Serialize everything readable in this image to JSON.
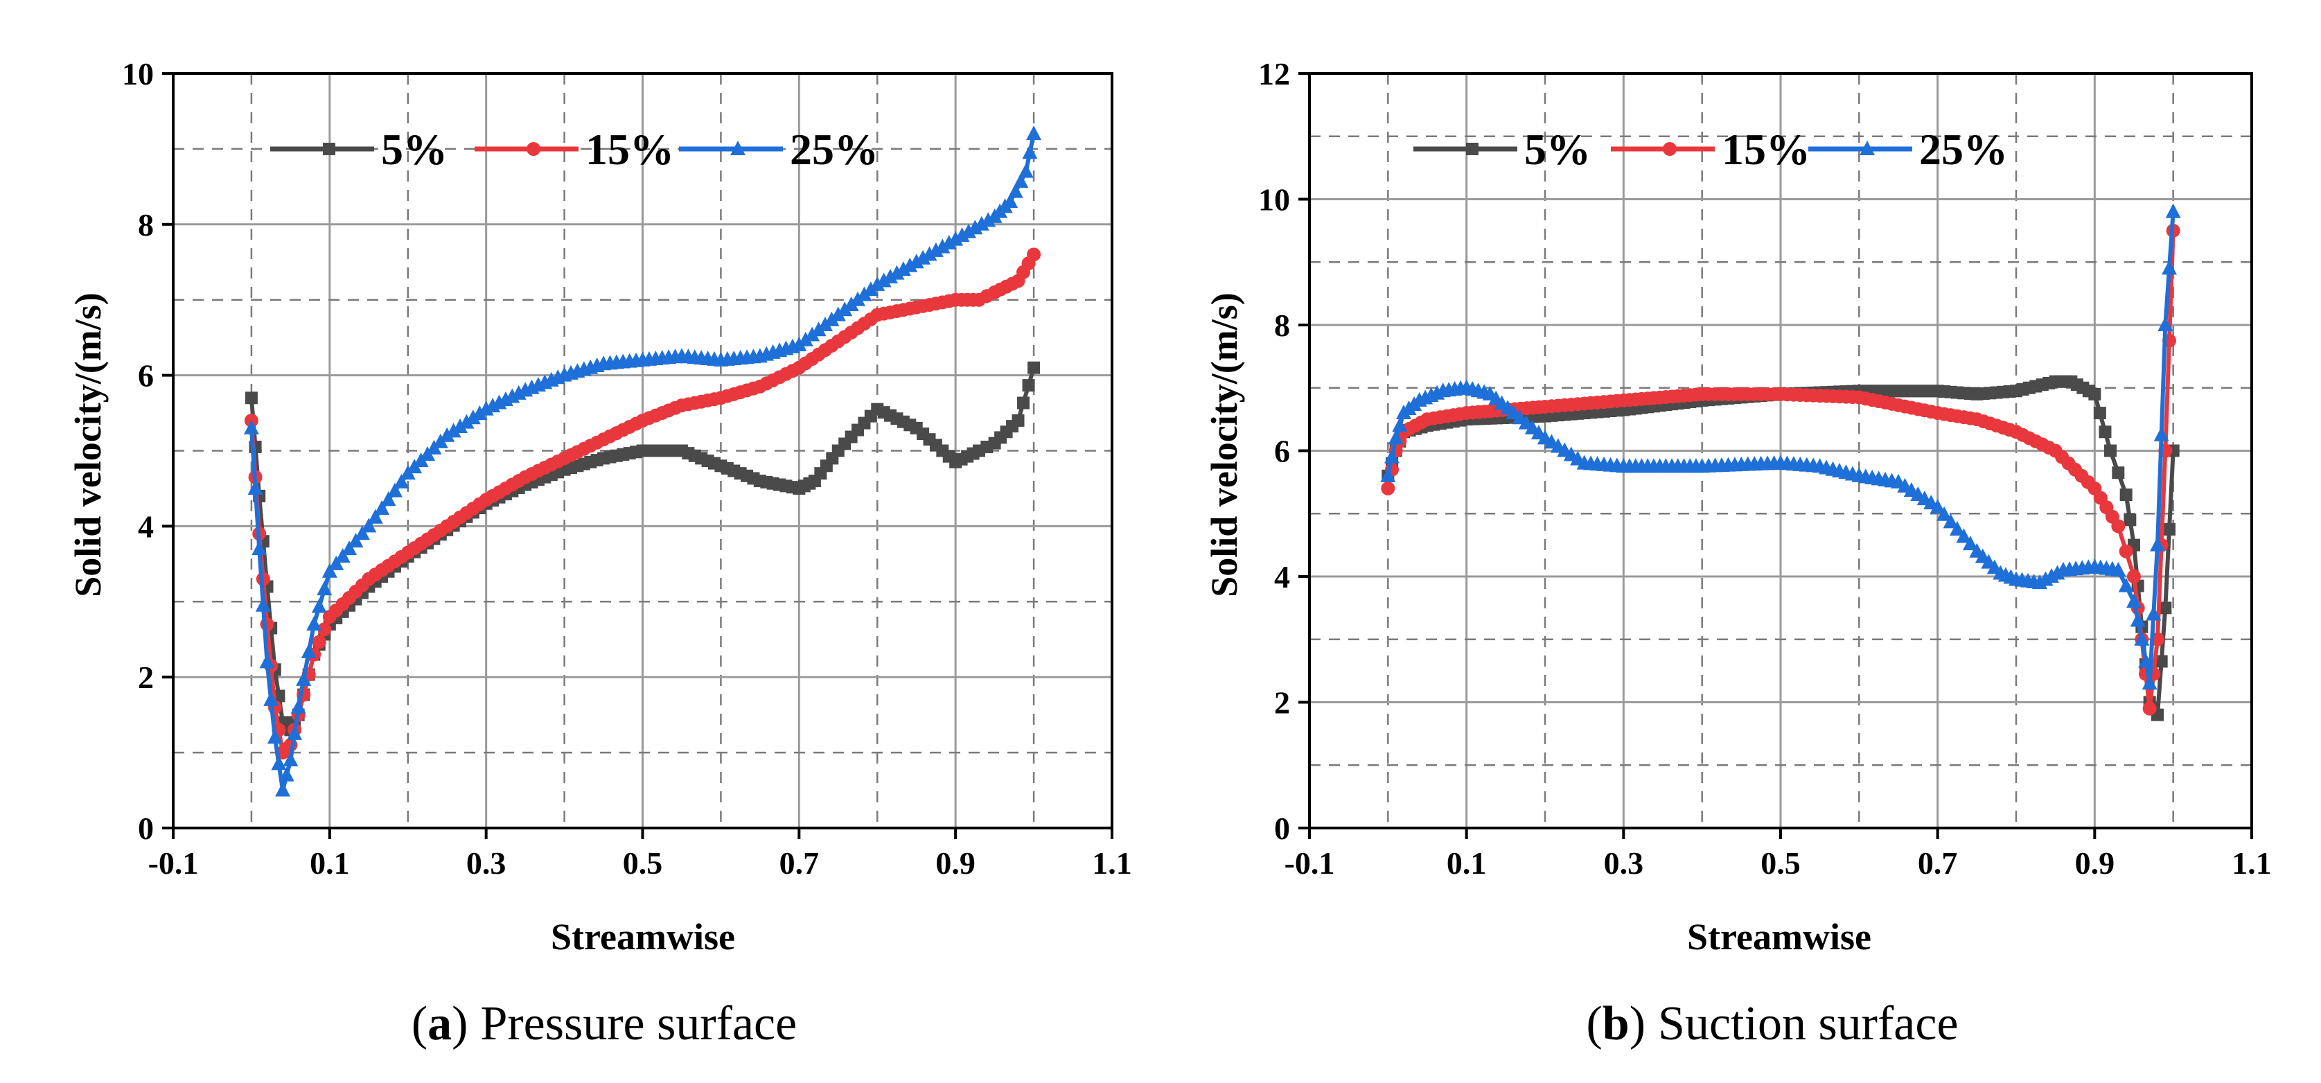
{
  "colors": {
    "s5": "#4a4a4a",
    "s15": "#e8383d",
    "s25": "#1f6fd8"
  },
  "chart_data": [
    {
      "type": "line",
      "caption_label": "a",
      "caption_text": "Pressure surface",
      "caption_open": "(",
      "caption_close": ")",
      "xlabel": "Streamwise",
      "ylabel": "Solid velocity/(m/s)",
      "xlim": [
        -0.1,
        1.1
      ],
      "ylim": [
        0,
        10
      ],
      "xticks": [
        -0.1,
        0.1,
        0.3,
        0.5,
        0.7,
        0.9,
        1.1
      ],
      "xtick_labels": [
        "-0.1",
        "0.1",
        "0.3",
        "0.5",
        "0.7",
        "0.9",
        "1.1"
      ],
      "yticks": [
        0,
        2,
        4,
        6,
        8,
        10
      ],
      "ytick_labels": [
        "0",
        "2",
        "4",
        "6",
        "8",
        "10"
      ],
      "series": [
        {
          "name": "5%",
          "marker": "square",
          "color": "#4a4a4a",
          "x": [
            0.0,
            0.01,
            0.02,
            0.03,
            0.04,
            0.05,
            0.06,
            0.08,
            0.1,
            0.15,
            0.2,
            0.25,
            0.3,
            0.35,
            0.4,
            0.45,
            0.5,
            0.55,
            0.6,
            0.65,
            0.7,
            0.72,
            0.75,
            0.8,
            0.85,
            0.9,
            0.93,
            0.95,
            0.98,
            1.0
          ],
          "y": [
            5.7,
            4.4,
            3.2,
            2.1,
            1.4,
            1.3,
            1.5,
            2.3,
            2.7,
            3.2,
            3.6,
            3.95,
            4.3,
            4.55,
            4.75,
            4.9,
            5.0,
            5.0,
            4.8,
            4.6,
            4.5,
            4.6,
            5.0,
            5.55,
            5.3,
            4.85,
            5.0,
            5.1,
            5.4,
            6.1
          ]
        },
        {
          "name": "15%",
          "marker": "circle",
          "color": "#e8383d",
          "x": [
            0.0,
            0.01,
            0.02,
            0.03,
            0.04,
            0.05,
            0.06,
            0.08,
            0.1,
            0.15,
            0.2,
            0.25,
            0.3,
            0.35,
            0.4,
            0.45,
            0.5,
            0.55,
            0.6,
            0.65,
            0.7,
            0.75,
            0.8,
            0.85,
            0.9,
            0.93,
            0.95,
            0.98,
            1.0
          ],
          "y": [
            5.4,
            3.9,
            2.7,
            1.6,
            1.0,
            1.1,
            1.5,
            2.3,
            2.8,
            3.3,
            3.65,
            4.0,
            4.35,
            4.65,
            4.9,
            5.15,
            5.4,
            5.6,
            5.7,
            5.85,
            6.1,
            6.45,
            6.8,
            6.9,
            7.0,
            7.0,
            7.1,
            7.25,
            7.6
          ]
        },
        {
          "name": "25%",
          "marker": "triangle",
          "color": "#1f6fd8",
          "x": [
            0.0,
            0.01,
            0.02,
            0.03,
            0.04,
            0.05,
            0.06,
            0.08,
            0.1,
            0.15,
            0.2,
            0.25,
            0.3,
            0.35,
            0.4,
            0.45,
            0.5,
            0.55,
            0.6,
            0.65,
            0.7,
            0.75,
            0.8,
            0.85,
            0.9,
            0.95,
            0.97,
            0.99,
            1.0
          ],
          "y": [
            5.3,
            3.7,
            2.2,
            1.2,
            0.5,
            0.9,
            1.6,
            2.7,
            3.4,
            4.0,
            4.7,
            5.2,
            5.55,
            5.8,
            6.0,
            6.15,
            6.2,
            6.25,
            6.2,
            6.25,
            6.4,
            6.8,
            7.2,
            7.5,
            7.8,
            8.1,
            8.3,
            8.7,
            9.2
          ]
        }
      ]
    },
    {
      "type": "line",
      "caption_label": "b",
      "caption_text": "Suction surface",
      "caption_open": "(",
      "caption_close": ")",
      "xlabel": "Streamwise",
      "ylabel": "Solid velocity/(m/s)",
      "xlim": [
        -0.1,
        1.1
      ],
      "ylim": [
        0,
        12
      ],
      "xticks": [
        -0.1,
        0.1,
        0.3,
        0.5,
        0.7,
        0.9,
        1.1
      ],
      "xtick_labels": [
        "-0.1",
        "0.1",
        "0.3",
        "0.5",
        "0.7",
        "0.9",
        "1.1"
      ],
      "yticks": [
        0,
        2,
        4,
        6,
        8,
        10,
        12
      ],
      "ytick_labels": [
        "0",
        "2",
        "4",
        "6",
        "8",
        "10",
        "12"
      ],
      "series": [
        {
          "name": "5%",
          "marker": "square",
          "color": "#4a4a4a",
          "x": [
            0.0,
            0.01,
            0.02,
            0.05,
            0.1,
            0.2,
            0.3,
            0.4,
            0.5,
            0.6,
            0.7,
            0.75,
            0.8,
            0.85,
            0.87,
            0.9,
            0.92,
            0.94,
            0.95,
            0.96,
            0.97,
            0.98,
            0.99,
            1.0
          ],
          "y": [
            5.6,
            6.0,
            6.3,
            6.4,
            6.5,
            6.55,
            6.65,
            6.8,
            6.9,
            6.95,
            6.95,
            6.9,
            6.95,
            7.1,
            7.1,
            6.9,
            6.0,
            5.3,
            4.5,
            3.2,
            2.0,
            1.8,
            3.5,
            6.0
          ]
        },
        {
          "name": "15%",
          "marker": "circle",
          "color": "#e8383d",
          "x": [
            0.0,
            0.01,
            0.02,
            0.05,
            0.1,
            0.2,
            0.3,
            0.4,
            0.5,
            0.6,
            0.7,
            0.75,
            0.8,
            0.85,
            0.9,
            0.93,
            0.95,
            0.96,
            0.97,
            0.98,
            0.99,
            1.0
          ],
          "y": [
            5.4,
            6.0,
            6.3,
            6.5,
            6.6,
            6.7,
            6.8,
            6.9,
            6.9,
            6.85,
            6.6,
            6.5,
            6.3,
            6.0,
            5.4,
            4.8,
            4.0,
            3.0,
            1.9,
            3.0,
            6.0,
            9.5
          ]
        },
        {
          "name": "25%",
          "marker": "triangle",
          "color": "#1f6fd8",
          "x": [
            0.0,
            0.01,
            0.02,
            0.04,
            0.07,
            0.1,
            0.13,
            0.16,
            0.2,
            0.25,
            0.3,
            0.4,
            0.5,
            0.55,
            0.6,
            0.65,
            0.7,
            0.75,
            0.78,
            0.8,
            0.83,
            0.86,
            0.9,
            0.93,
            0.95,
            0.96,
            0.97,
            0.98,
            0.99,
            1.0
          ],
          "y": [
            5.6,
            6.2,
            6.6,
            6.8,
            6.95,
            7.0,
            6.9,
            6.6,
            6.2,
            5.8,
            5.75,
            5.75,
            5.8,
            5.75,
            5.6,
            5.5,
            5.1,
            4.4,
            4.05,
            3.95,
            3.9,
            4.1,
            4.15,
            4.1,
            3.6,
            3.0,
            2.3,
            4.5,
            8.0,
            9.8
          ]
        }
      ]
    }
  ]
}
